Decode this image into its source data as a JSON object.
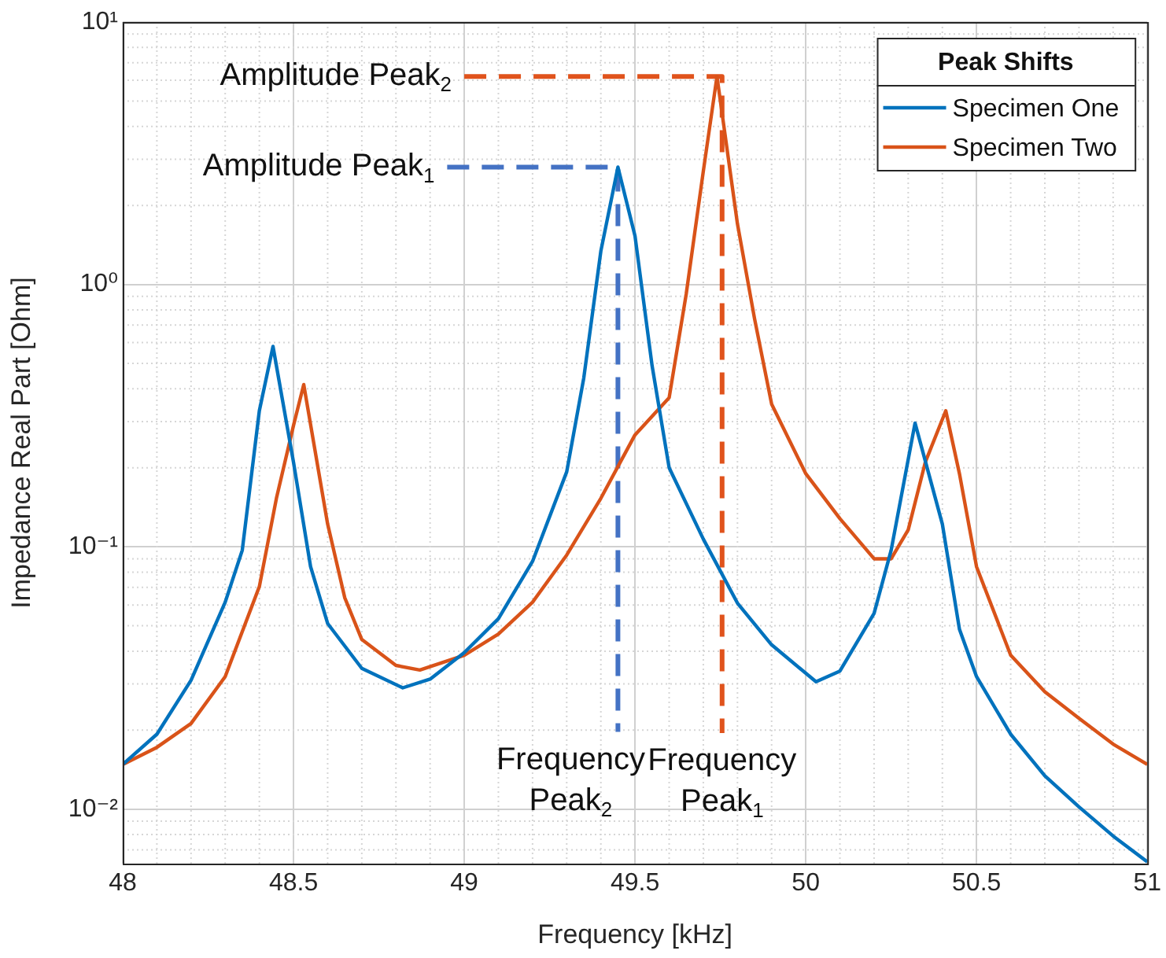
{
  "chart_data": {
    "type": "line",
    "xlabel": "Frequency [kHz]",
    "ylabel": "Impedance Real Part [Ohm]",
    "legend_title": "Peak Shifts",
    "legend": "top right",
    "grid": true,
    "log": "y",
    "marker": "none",
    "xlim": [
      48,
      51
    ],
    "xticks": [
      48,
      48.5,
      49,
      49.5,
      50,
      50.5,
      51
    ],
    "ylim": [
      0.0062,
      10
    ],
    "yticks": [
      {
        "value": 0.01,
        "label": "10⁻²"
      },
      {
        "value": 0.1,
        "label": "10⁻¹"
      },
      {
        "value": 1,
        "label": "10⁰"
      },
      {
        "value": 10,
        "label": "10¹"
      }
    ],
    "series": [
      {
        "name": "Specimen One",
        "color": "#0072bd",
        "x": [
          48,
          48.1,
          48.2,
          48.3,
          48.35,
          48.4,
          48.44,
          48.5,
          48.55,
          48.6,
          48.7,
          48.82,
          48.9,
          49,
          49.1,
          49.2,
          49.3,
          49.35,
          49.4,
          49.45,
          49.5,
          49.55,
          49.6,
          49.7,
          49.8,
          49.9,
          50.03,
          50.1,
          50.2,
          50.25,
          50.32,
          50.4,
          50.45,
          50.5,
          50.6,
          50.7,
          50.8,
          50.9,
          51
        ],
        "values": [
          0.0148,
          0.0193,
          0.031,
          0.0615,
          0.097,
          0.33,
          0.58,
          0.21,
          0.084,
          0.051,
          0.0344,
          0.029,
          0.0313,
          0.0395,
          0.0532,
          0.088,
          0.193,
          0.44,
          1.34,
          2.8,
          1.53,
          0.49,
          0.2,
          0.107,
          0.061,
          0.0423,
          0.0306,
          0.0336,
          0.0557,
          0.097,
          0.296,
          0.122,
          0.0485,
          0.032,
          0.0193,
          0.0134,
          0.0102,
          0.0079,
          0.0063
        ]
      },
      {
        "name": "Specimen Two",
        "color": "#d95319",
        "x": [
          48,
          48.1,
          48.2,
          48.3,
          48.4,
          48.45,
          48.5,
          48.53,
          48.6,
          48.65,
          48.7,
          48.8,
          48.87,
          49,
          49.1,
          49.2,
          49.3,
          49.4,
          49.5,
          49.6,
          49.65,
          49.7,
          49.74,
          49.8,
          49.85,
          49.9,
          50,
          50.1,
          50.2,
          50.25,
          50.3,
          50.35,
          50.41,
          50.45,
          50.5,
          50.6,
          50.7,
          50.8,
          50.9,
          51
        ],
        "values": [
          0.0148,
          0.0172,
          0.0212,
          0.032,
          0.0705,
          0.153,
          0.29,
          0.415,
          0.122,
          0.064,
          0.0443,
          0.0353,
          0.0339,
          0.0386,
          0.0465,
          0.0615,
          0.093,
          0.153,
          0.267,
          0.37,
          0.92,
          2.7,
          6.2,
          1.7,
          0.74,
          0.35,
          0.19,
          0.128,
          0.09,
          0.09,
          0.116,
          0.21,
          0.33,
          0.19,
          0.084,
          0.0386,
          0.028,
          0.0222,
          0.0177,
          0.0148
        ]
      },
      {
        "color": "#4472c4",
        "line_style": "dashed",
        "x": [
          48.95,
          49.45,
          49.45
        ],
        "values": [
          2.8,
          2.8,
          0.0197
        ]
      },
      {
        "color": "#e0531c",
        "line_style": "dashed",
        "x": [
          49,
          49.74,
          49.755,
          49.755
        ],
        "values": [
          6.2,
          6.2,
          6.2,
          0.0195
        ]
      }
    ],
    "annotations": [
      "Amplitude Peak$_{2}$",
      "Amplitude Peak$_{1}$",
      "Frequency\nPeak$_{2}$",
      "Frequency\nPeak$_{1}$"
    ]
  }
}
